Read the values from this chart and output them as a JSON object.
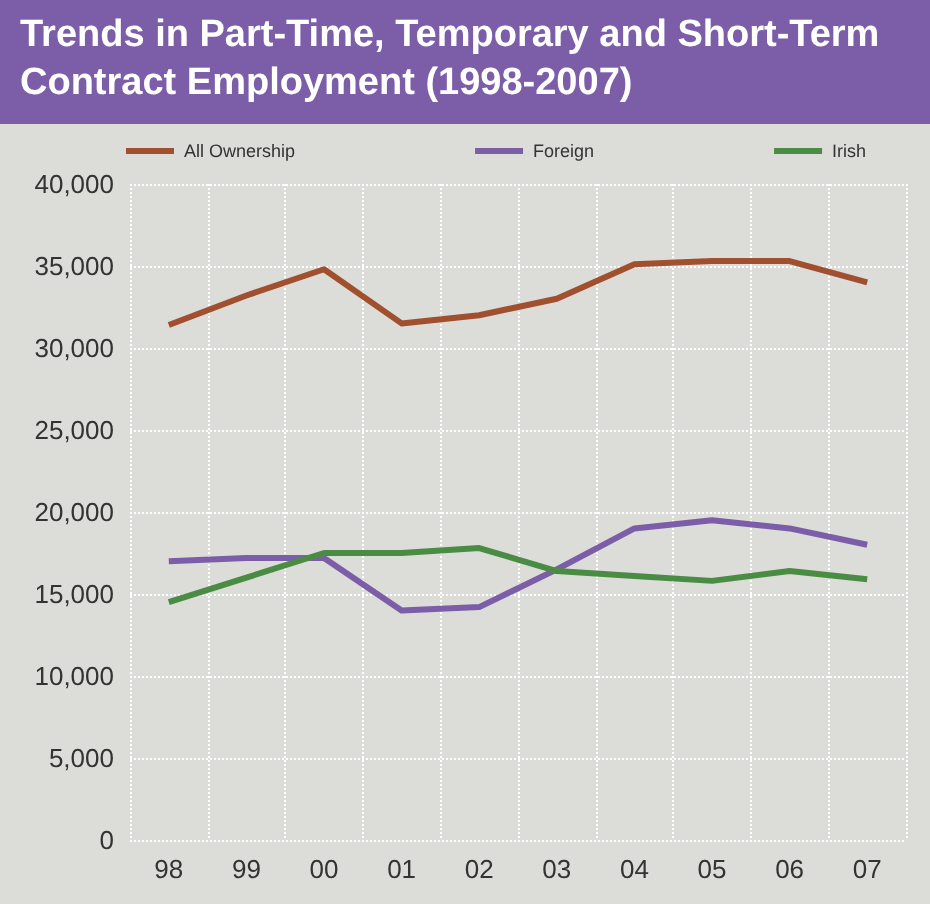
{
  "chart_data": {
    "type": "line",
    "title": "Trends in Part-Time, Temporary and Short-Term Contract Employment (1998-2007)",
    "categories": [
      "98",
      "99",
      "00",
      "01",
      "02",
      "03",
      "04",
      "05",
      "06",
      "07"
    ],
    "series": [
      {
        "name": "All Ownership",
        "color": "#a0502e",
        "values": [
          31400,
          33200,
          34800,
          31500,
          32000,
          33000,
          35100,
          35300,
          35300,
          34000
        ]
      },
      {
        "name": "Foreign",
        "color": "#7b5ea7",
        "values": [
          17000,
          17200,
          17200,
          14000,
          14200,
          16500,
          19000,
          19500,
          19000,
          18000
        ]
      },
      {
        "name": "Irish",
        "color": "#4a8c44",
        "values": [
          14500,
          16000,
          17500,
          17500,
          17800,
          16400,
          16100,
          15800,
          16400,
          15900
        ]
      }
    ],
    "ylim": [
      0,
      40000
    ],
    "yticks": [
      0,
      {
        "value": 5000,
        "label": "5,000"
      },
      {
        "value": 10000,
        "label": "10,000"
      },
      {
        "value": 15000,
        "label": "15,000"
      },
      {
        "value": 20000,
        "label": "20,000"
      },
      {
        "value": 25000,
        "label": "25,000"
      },
      {
        "value": 30000,
        "label": "30,000"
      },
      {
        "value": 35000,
        "label": "35,000"
      },
      {
        "value": 40000,
        "label": "40,000"
      }
    ],
    "grid": true,
    "legend": "top",
    "marker": "none",
    "line_style": "solid"
  }
}
